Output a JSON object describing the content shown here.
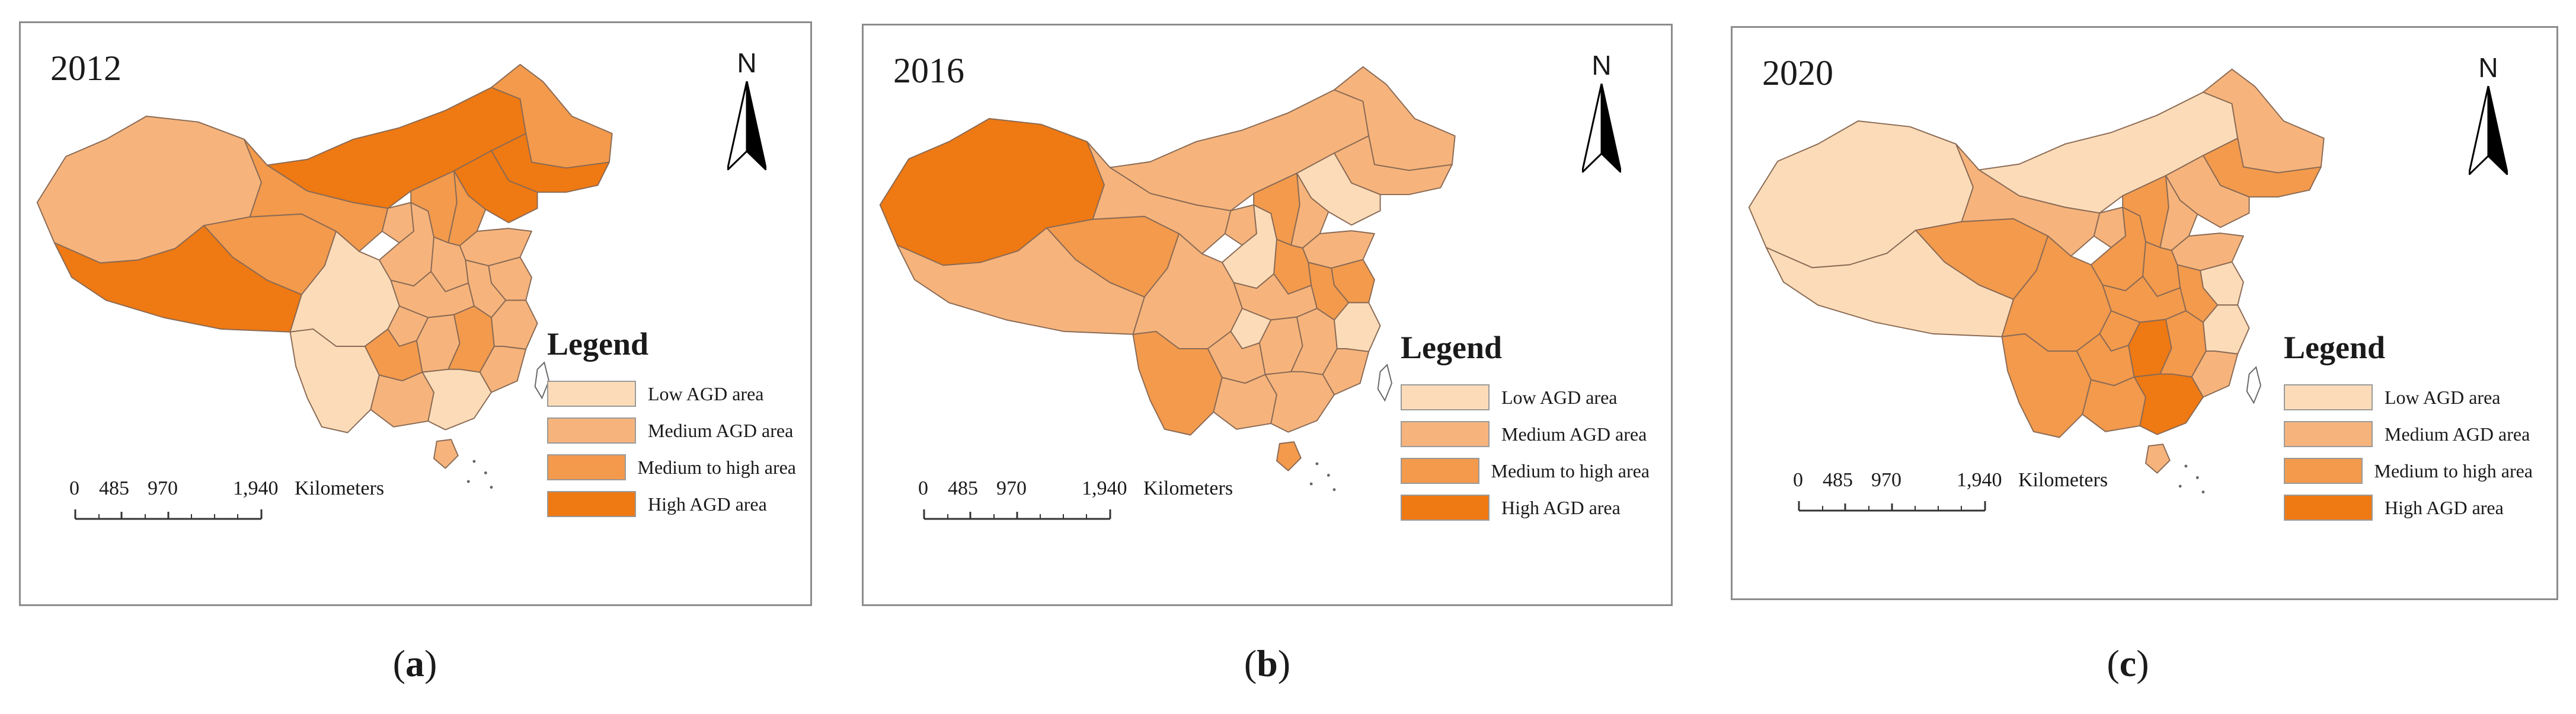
{
  "colors": {
    "low": "#fcdcb8",
    "medium": "#f6b47c",
    "medium_high": "#f39a4c",
    "high": "#ef7912",
    "border": "#8a6a55",
    "outline": "#666666"
  },
  "legend": {
    "title": "Legend",
    "items": [
      {
        "label": "Low AGD area",
        "level": "low"
      },
      {
        "label": "Medium AGD area",
        "level": "medium"
      },
      {
        "label": "Medium to high area",
        "level": "medium_high"
      },
      {
        "label": "High AGD area",
        "level": "high"
      }
    ]
  },
  "north_arrow": "N",
  "scale_bar": {
    "ticks": [
      "0",
      "485",
      "970",
      "1,940"
    ],
    "unit": "Kilometers"
  },
  "panels": [
    {
      "year": "2012",
      "caption": "a",
      "regions": {
        "xinjiang": "medium",
        "tibet": "high",
        "qinghai": "medium_high",
        "inner_mongolia": "high",
        "heilongjiang": "medium_high",
        "jilin": "high",
        "liaoning": "high",
        "gansu": "medium_high",
        "ningxia": "medium",
        "shaanxi": "medium",
        "shanxi": "medium_high",
        "hebei": "medium_high",
        "shandong": "medium",
        "henan": "medium",
        "jiangsu": "medium",
        "anhui": "medium",
        "hubei": "medium",
        "sichuan": "low",
        "chongqing": "medium",
        "hunan": "medium",
        "jiangxi": "medium_high",
        "zhejiang": "medium",
        "fujian": "medium",
        "guizhou": "medium_high",
        "yunnan": "low",
        "guangxi": "medium",
        "guangdong": "low",
        "hainan": "medium"
      }
    },
    {
      "year": "2016",
      "caption": "b",
      "regions": {
        "xinjiang": "high",
        "tibet": "medium",
        "qinghai": "medium_high",
        "inner_mongolia": "medium",
        "heilongjiang": "medium",
        "jilin": "medium",
        "liaoning": "low",
        "gansu": "medium",
        "ningxia": "medium",
        "shaanxi": "low",
        "shanxi": "medium_high",
        "hebei": "medium",
        "shandong": "medium",
        "henan": "medium_high",
        "jiangsu": "medium_high",
        "anhui": "medium_high",
        "hubei": "medium",
        "sichuan": "medium",
        "chongqing": "low",
        "hunan": "medium",
        "jiangxi": "medium",
        "zhejiang": "low",
        "fujian": "medium",
        "guizhou": "medium",
        "yunnan": "medium_high",
        "guangxi": "medium",
        "guangdong": "medium",
        "hainan": "medium_high"
      }
    },
    {
      "year": "2020",
      "caption": "c",
      "regions": {
        "xinjiang": "low",
        "tibet": "low",
        "qinghai": "medium_high",
        "inner_mongolia": "low",
        "heilongjiang": "medium",
        "jilin": "medium_high",
        "liaoning": "medium",
        "gansu": "medium",
        "ningxia": "medium",
        "shaanxi": "medium_high",
        "shanxi": "medium_high",
        "hebei": "medium",
        "shandong": "medium",
        "henan": "medium_high",
        "jiangsu": "low",
        "anhui": "medium_high",
        "hubei": "medium_high",
        "sichuan": "medium_high",
        "chongqing": "medium_high",
        "hunan": "high",
        "jiangxi": "medium_high",
        "zhejiang": "low",
        "fujian": "medium",
        "guizhou": "medium_high",
        "yunnan": "medium_high",
        "guangxi": "medium_high",
        "guangdong": "high",
        "hainan": "medium"
      }
    }
  ]
}
